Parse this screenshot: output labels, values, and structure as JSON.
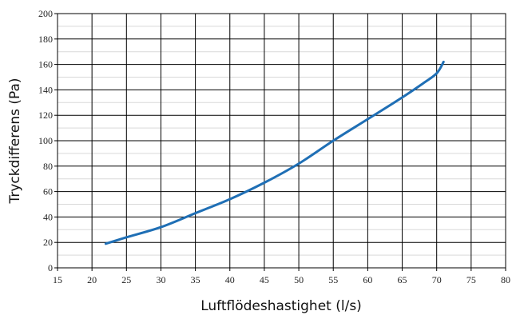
{
  "chart_data": {
    "type": "line",
    "title": "",
    "xlabel": "Luftflödeshastighet (l/s)",
    "ylabel": "Tryckdifferens (Pa)",
    "xlim": [
      15,
      80
    ],
    "ylim": [
      0,
      200
    ],
    "x_ticks": [
      15,
      20,
      25,
      30,
      35,
      40,
      45,
      50,
      55,
      60,
      65,
      70,
      75,
      80
    ],
    "y_ticks": [
      0,
      20,
      40,
      60,
      80,
      100,
      120,
      140,
      160,
      180,
      200
    ],
    "grid": true,
    "line_color": "#1f6fb5",
    "series": [
      {
        "x": [
          22,
          25,
          30,
          35,
          40,
          45,
          50,
          55,
          60,
          65,
          68,
          70,
          71
        ],
        "y": [
          19,
          24,
          32,
          43,
          54,
          67,
          82,
          100,
          117,
          134,
          145,
          153,
          162
        ]
      }
    ]
  }
}
